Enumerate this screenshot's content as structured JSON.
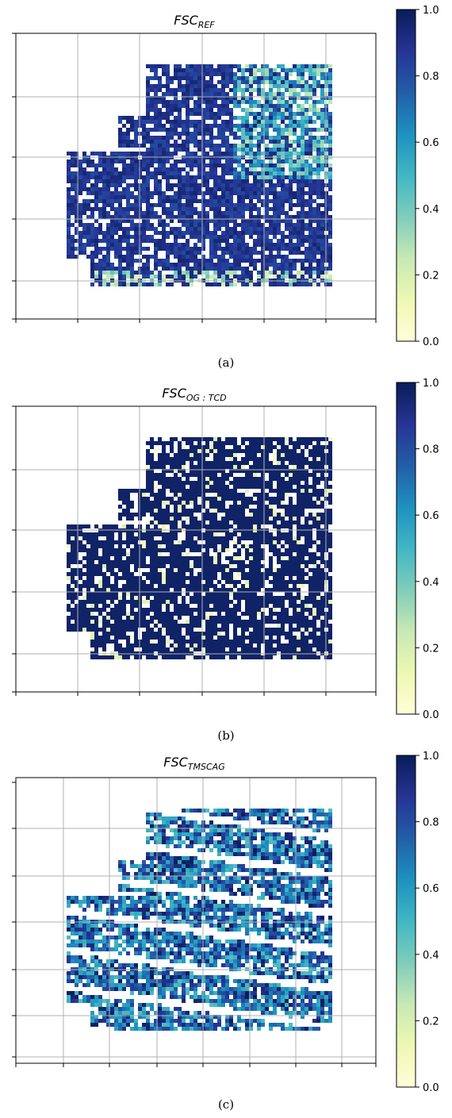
{
  "colors": {
    "colormap": "YlGnBu",
    "cmap_stops": [
      "#ffffd9",
      "#edf8b1",
      "#c7e9b4",
      "#7fcdbb",
      "#41b6c4",
      "#1d91c0",
      "#225ea8",
      "#253494",
      "#081d58"
    ],
    "grid": "#b0b0b0"
  },
  "chart_data": [
    {
      "type": "heatmap",
      "title_main": "FSC",
      "title_sub": "REF",
      "caption": "(a)",
      "xlabel": "",
      "ylabel": "",
      "colorbar": {
        "range": [
          0.0,
          1.0
        ],
        "ticks": [
          "0.0",
          "0.2",
          "0.4",
          "0.6",
          "0.8",
          "1.0"
        ]
      },
      "grid": true,
      "tick_labels_visible": false,
      "scene_description": "snow cover fraction map; mostly values near 1.0 with lower-value patches in upper-right"
    },
    {
      "type": "heatmap",
      "title_main": "FSC",
      "title_sub": "OG : TCD",
      "caption": "(b)",
      "xlabel": "",
      "ylabel": "",
      "colorbar": {
        "range": [
          0.0,
          1.0
        ],
        "ticks": [
          "0.0",
          "0.2",
          "0.4",
          "0.6",
          "0.8",
          "1.0"
        ]
      },
      "grid": true,
      "tick_labels_visible": false,
      "scene_description": "snow cover fraction map; nearly all values at 1.0 with few low-value pixels"
    },
    {
      "type": "heatmap",
      "title_main": "FSC",
      "title_sub": "TMSCAG",
      "caption": "(c)",
      "xlabel": "",
      "ylabel": "",
      "colorbar": {
        "range": [
          0.0,
          1.0
        ],
        "ticks": [
          "0.0",
          "0.2",
          "0.4",
          "0.6",
          "0.8",
          "1.0"
        ]
      },
      "grid": true,
      "tick_labels_visible": false,
      "scene_description": "snow cover fraction map with diagonal no-data stripes; mixed values 0.4-1.0"
    }
  ]
}
